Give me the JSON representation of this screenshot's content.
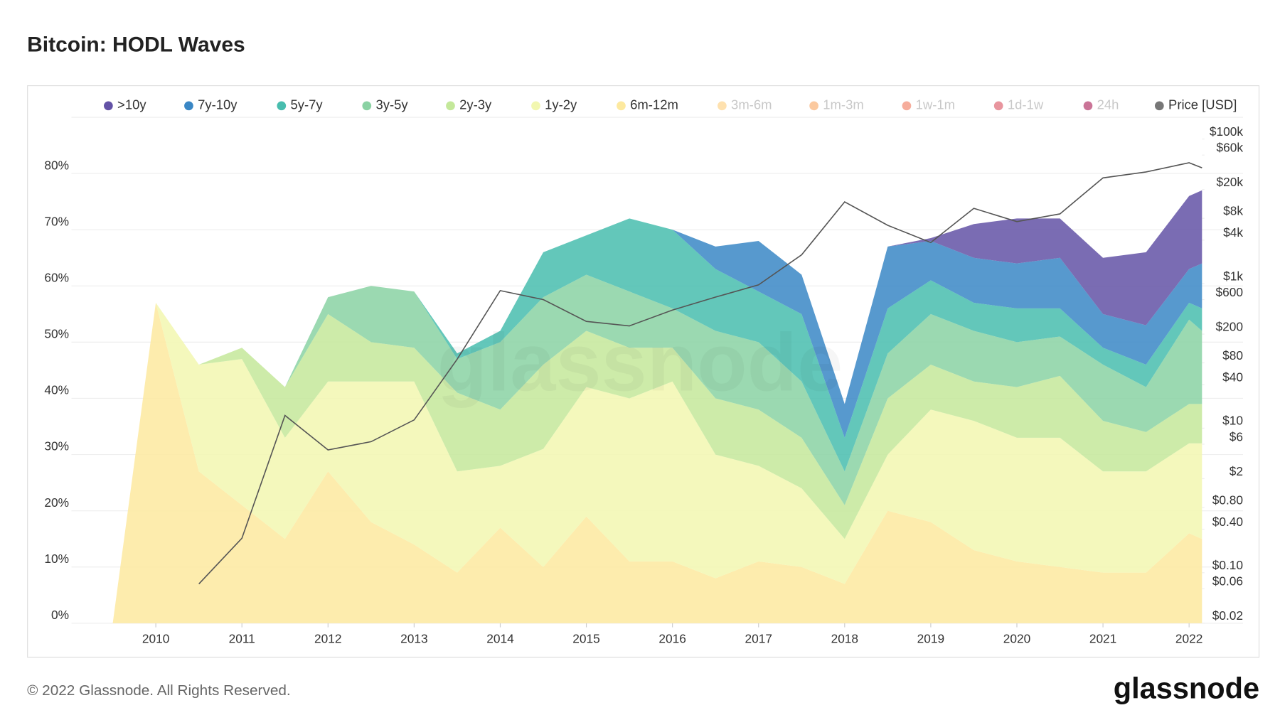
{
  "chart_data": {
    "type": "stacked-area",
    "title": "Bitcoin: HODL Waves",
    "watermark": "glassnode",
    "footer": "© 2022 Glassnode. All Rights Reserved.",
    "logo": "glassnode",
    "x": [
      2009.5,
      2010,
      2010.5,
      2011,
      2011.5,
      2012,
      2012.5,
      2013,
      2013.5,
      2014,
      2014.5,
      2015,
      2015.5,
      2016,
      2016.5,
      2017,
      2017.5,
      2018,
      2018.5,
      2019,
      2019.5,
      2020,
      2020.5,
      2021,
      2021.5,
      2022,
      2022.15
    ],
    "xlim": [
      2009.02,
      2022.15
    ],
    "xticks": [
      2010,
      2011,
      2012,
      2013,
      2014,
      2015,
      2016,
      2017,
      2018,
      2019,
      2020,
      2021,
      2022
    ],
    "ylim": [
      0,
      90
    ],
    "yticks": [
      {
        "value": 0,
        "label": "0%"
      },
      {
        "value": 10,
        "label": "10%"
      },
      {
        "value": 20,
        "label": "20%"
      },
      {
        "value": 30,
        "label": "30%"
      },
      {
        "value": 40,
        "label": "40%"
      },
      {
        "value": 50,
        "label": "50%"
      },
      {
        "value": 60,
        "label": "60%"
      },
      {
        "value": 70,
        "label": "70%"
      },
      {
        "value": 80,
        "label": "80%"
      }
    ],
    "y2lim": [
      0.02,
      200000
    ],
    "y2log": true,
    "y2ticks": [
      {
        "value": 100000,
        "label": "$100k"
      },
      {
        "value": 60000,
        "label": "$60k"
      },
      {
        "value": 20000,
        "label": "$20k"
      },
      {
        "value": 8000,
        "label": "$8k"
      },
      {
        "value": 4000,
        "label": "$4k"
      },
      {
        "value": 1000,
        "label": "$1k"
      },
      {
        "value": 600,
        "label": "$600"
      },
      {
        "value": 200,
        "label": "$200"
      },
      {
        "value": 80,
        "label": "$80"
      },
      {
        "value": 40,
        "label": "$40"
      },
      {
        "value": 10,
        "label": "$10"
      },
      {
        "value": 6,
        "label": "$6"
      },
      {
        "value": 2,
        "label": "$2"
      },
      {
        "value": 0.8,
        "label": "$0.80"
      },
      {
        "value": 0.4,
        "label": "$0.40"
      },
      {
        "value": 0.1,
        "label": "$0.10"
      },
      {
        "value": 0.06,
        "label": "$0.06"
      },
      {
        "value": 0.02,
        "label": "$0.02"
      }
    ],
    "grid": true,
    "series": [
      {
        "name": ">10y",
        "color": "#6352a6",
        "values": [
          0,
          0,
          0,
          0,
          0,
          0,
          0,
          0,
          0,
          0,
          0,
          0,
          0,
          0,
          0,
          0,
          0,
          0,
          0,
          0.5,
          6,
          8,
          7,
          10,
          13,
          13,
          13
        ]
      },
      {
        "name": "7y-10y",
        "color": "#3a87c5",
        "values": [
          0,
          0,
          0,
          0,
          0,
          0,
          0,
          0,
          0,
          0,
          0,
          0,
          0,
          0,
          4,
          9,
          7,
          6,
          11,
          7,
          8,
          8,
          9,
          6,
          7,
          6,
          8
        ]
      },
      {
        "name": "5y-7y",
        "color": "#48bdae",
        "values": [
          0,
          0,
          0,
          0,
          0,
          0,
          0,
          0,
          1,
          2,
          8,
          7,
          13,
          14,
          11,
          9,
          12,
          6,
          8,
          6,
          5,
          6,
          5,
          3,
          4,
          3,
          4
        ]
      },
      {
        "name": "3y-5y",
        "color": "#8ad2a3",
        "values": [
          0,
          0,
          0,
          0,
          0,
          3,
          10,
          10,
          6,
          12,
          12,
          10,
          10,
          7,
          12,
          12,
          10,
          6,
          8,
          9,
          9,
          8,
          7,
          10,
          8,
          15,
          13
        ]
      },
      {
        "name": "2y-3y",
        "color": "#c4e89a",
        "values": [
          0,
          0,
          0,
          2,
          9,
          12,
          7,
          6,
          14,
          10,
          15,
          10,
          9,
          6,
          10,
          10,
          9,
          6,
          10,
          8,
          7,
          9,
          11,
          9,
          7,
          7,
          7
        ]
      },
      {
        "name": "1y-2y",
        "color": "#f2f7b0",
        "values": [
          0,
          0,
          19,
          26,
          18,
          16,
          25,
          29,
          18,
          11,
          21,
          23,
          29,
          32,
          22,
          17,
          14,
          8,
          10,
          20,
          23,
          22,
          23,
          18,
          18,
          16,
          17
        ]
      },
      {
        "name": "6m-12m",
        "color": "#fde99f",
        "values": [
          0,
          57,
          27,
          21,
          15,
          27,
          18,
          14,
          9,
          17,
          10,
          19,
          11,
          11,
          8,
          11,
          10,
          7,
          20,
          18,
          13,
          11,
          10,
          9,
          9,
          16,
          15
        ]
      },
      {
        "name": "3m-6m",
        "color": "#fdc86e",
        "visible": false
      },
      {
        "name": "1m-3m",
        "color": "#f89c50",
        "visible": false
      },
      {
        "name": "1w-1m",
        "color": "#ee6a4a",
        "visible": false
      },
      {
        "name": "1d-1w",
        "color": "#d53e4f",
        "visible": false
      },
      {
        "name": "24h",
        "color": "#9e0142",
        "visible": false
      },
      {
        "name": "Price [USD]",
        "color": "#777777",
        "axis": "y2",
        "values": [
          null,
          null,
          0.07,
          0.3,
          15,
          5,
          6.5,
          13,
          90,
          800,
          600,
          300,
          260,
          430,
          650,
          960,
          2500,
          13500,
          6400,
          3700,
          11000,
          7200,
          9200,
          29000,
          35000,
          47000,
          40000
        ]
      }
    ]
  }
}
